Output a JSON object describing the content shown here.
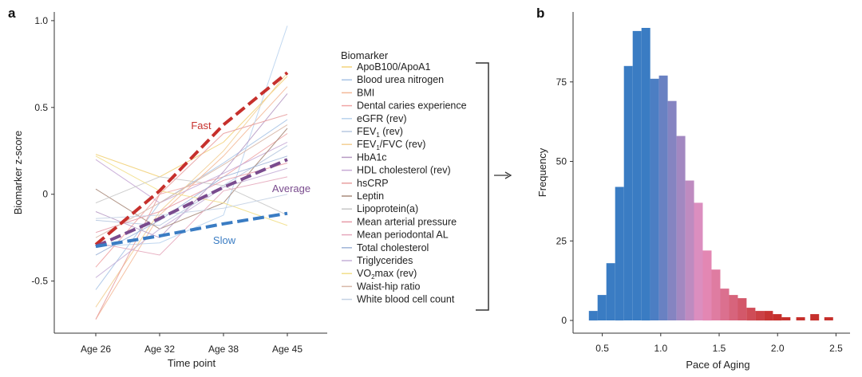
{
  "panels": {
    "a": "a",
    "b": "b"
  },
  "chart_data": [
    {
      "type": "line",
      "panel": "a",
      "x": [
        "Age 26",
        "Age 32",
        "Age 38",
        "Age 45"
      ],
      "xlabel": "Time point",
      "ylabel": "Biomarker z-score",
      "ylim": [
        -0.8,
        1.05
      ],
      "yticks": [
        -0.5,
        0,
        0.5,
        1.0
      ],
      "ytick_labels": [
        "-0.5",
        "0",
        "0.5",
        "1.0"
      ],
      "grid": false,
      "legend_title": "Biomarker",
      "legend_placement": "right",
      "series": [
        {
          "name": "ApoB100/ApoA1",
          "values": [
            0.23,
            0.1,
            0.3,
            0.68
          ],
          "color": "#f2d27a"
        },
        {
          "name": "Blood urea nitrogen",
          "values": [
            -0.55,
            -0.05,
            0.18,
            0.43
          ],
          "color": "#a9c4e6"
        },
        {
          "name": "BMI",
          "values": [
            -0.72,
            -0.12,
            0.22,
            0.62
          ],
          "color": "#f4b998"
        },
        {
          "name": "Dental caries experience",
          "values": [
            -0.42,
            0.0,
            0.1,
            0.35
          ],
          "color": "#f0a5a5"
        },
        {
          "name": "eGFR (rev)",
          "values": [
            -0.3,
            -0.28,
            -0.12,
            0.97
          ],
          "color": "#b9d3ee"
        },
        {
          "name": "FEV1 (rev)",
          "values": [
            -0.15,
            -0.18,
            0.05,
            0.28
          ],
          "color": "#b7c8e0"
        },
        {
          "name": "FEV1/FVC (rev)",
          "values": [
            -0.65,
            -0.1,
            0.25,
            0.7
          ],
          "color": "#f3cf95"
        },
        {
          "name": "HbA1c",
          "values": [
            -0.1,
            -0.25,
            0.13,
            0.58
          ],
          "color": "#b79ac4"
        },
        {
          "name": "HDL cholesterol (rev)",
          "values": [
            0.2,
            -0.05,
            0.12,
            0.3
          ],
          "color": "#c7aad6"
        },
        {
          "name": "hsCRP",
          "values": [
            -0.72,
            0.0,
            0.35,
            0.46
          ],
          "color": "#e8a0a0"
        },
        {
          "name": "Leptin",
          "values": [
            0.03,
            -0.2,
            -0.05,
            0.38
          ],
          "color": "#a88a7a"
        },
        {
          "name": "Lipoprotein(a)",
          "values": [
            -0.05,
            0.1,
            0.05,
            -0.12
          ],
          "color": "#c8c8c8"
        },
        {
          "name": "Mean arterial pressure",
          "values": [
            -0.22,
            -0.1,
            0.08,
            0.18
          ],
          "color": "#e79aa7"
        },
        {
          "name": "Mean periodontal AL",
          "values": [
            -0.28,
            -0.35,
            0.02,
            0.1
          ],
          "color": "#e6a8bd"
        },
        {
          "name": "Total cholesterol",
          "values": [
            -0.35,
            -0.15,
            0.1,
            0.22
          ],
          "color": "#9fb5d8"
        },
        {
          "name": "Triglycerides",
          "values": [
            -0.48,
            -0.2,
            0.04,
            0.15
          ],
          "color": "#c6b0d8"
        },
        {
          "name": "VO2max (rev)",
          "values": [
            0.22,
            0.02,
            -0.05,
            -0.18
          ],
          "color": "#f2df8a"
        },
        {
          "name": "Waist-hip ratio",
          "values": [
            -0.25,
            -0.05,
            0.17,
            0.4
          ],
          "color": "#d8b8a8"
        },
        {
          "name": "White blood cell count",
          "values": [
            -0.14,
            -0.12,
            -0.08,
            0.0
          ],
          "color": "#c4d2e4"
        }
      ],
      "groups": [
        {
          "name": "Fast",
          "values": [
            -0.29,
            0.02,
            0.4,
            0.7
          ],
          "color": "#c6302c"
        },
        {
          "name": "Average",
          "values": [
            -0.3,
            -0.14,
            0.04,
            0.2
          ],
          "color": "#7a4c8e"
        },
        {
          "name": "Slow",
          "values": [
            -0.3,
            -0.24,
            -0.17,
            -0.11
          ],
          "color": "#3a7cc3"
        }
      ],
      "legend_items": [
        {
          "label": "ApoB100/ApoA1",
          "sub": ""
        },
        {
          "label": "Blood urea nitrogen",
          "sub": ""
        },
        {
          "label": "BMI",
          "sub": ""
        },
        {
          "label": "Dental caries experience",
          "sub": ""
        },
        {
          "label": "eGFR (rev)",
          "sub": ""
        },
        {
          "label": "FEV",
          "sub": "1",
          "rest": " (rev)"
        },
        {
          "label": "FEV",
          "sub": "1",
          "rest": "/FVC (rev)"
        },
        {
          "label": "HbA1c",
          "sub": ""
        },
        {
          "label": "HDL cholesterol (rev)",
          "sub": ""
        },
        {
          "label": "hsCRP",
          "sub": ""
        },
        {
          "label": "Leptin",
          "sub": ""
        },
        {
          "label": "Lipoprotein(a)",
          "sub": ""
        },
        {
          "label": "Mean arterial pressure",
          "sub": ""
        },
        {
          "label": "Mean periodontal AL",
          "sub": ""
        },
        {
          "label": "Total cholesterol",
          "sub": ""
        },
        {
          "label": "Triglycerides",
          "sub": ""
        },
        {
          "label": "VO",
          "sub": "2",
          "rest": "max (rev)"
        },
        {
          "label": "Waist-hip ratio",
          "sub": ""
        },
        {
          "label": "White blood cell count",
          "sub": ""
        }
      ]
    },
    {
      "type": "bar",
      "panel": "b",
      "xlabel": "Pace of Aging",
      "ylabel": "Frequency",
      "xlim": [
        0.25,
        2.62
      ],
      "ylim": [
        -4,
        97
      ],
      "xticks": [
        0.5,
        1.0,
        1.5,
        2.0,
        2.5
      ],
      "xtick_labels": [
        "0.5",
        "1.0",
        "1.5",
        "2.0",
        "2.5"
      ],
      "yticks": [
        0,
        25,
        50,
        75
      ],
      "ytick_labels": [
        "0",
        "25",
        "50",
        "75"
      ],
      "grid": false,
      "bin_width": 0.075,
      "bins": [
        {
          "start": 0.385,
          "value": 3
        },
        {
          "start": 0.46,
          "value": 8
        },
        {
          "start": 0.535,
          "value": 18
        },
        {
          "start": 0.61,
          "value": 42
        },
        {
          "start": 0.685,
          "value": 80
        },
        {
          "start": 0.76,
          "value": 91
        },
        {
          "start": 0.835,
          "value": 92
        },
        {
          "start": 0.91,
          "value": 76
        },
        {
          "start": 0.985,
          "value": 77
        },
        {
          "start": 1.06,
          "value": 69
        },
        {
          "start": 1.135,
          "value": 58
        },
        {
          "start": 1.21,
          "value": 44
        },
        {
          "start": 1.285,
          "value": 37
        },
        {
          "start": 1.36,
          "value": 22
        },
        {
          "start": 1.435,
          "value": 16
        },
        {
          "start": 1.51,
          "value": 10
        },
        {
          "start": 1.585,
          "value": 8
        },
        {
          "start": 1.66,
          "value": 7
        },
        {
          "start": 1.735,
          "value": 4
        },
        {
          "start": 1.81,
          "value": 3
        },
        {
          "start": 1.885,
          "value": 3
        },
        {
          "start": 1.96,
          "value": 2
        },
        {
          "start": 2.035,
          "value": 1
        },
        {
          "start": 2.16,
          "value": 1
        },
        {
          "start": 2.28,
          "value": 2
        },
        {
          "start": 2.4,
          "value": 1
        }
      ],
      "color_low": "#3a7cc3",
      "color_mid": "#e58fbf",
      "color_high": "#c6302c"
    }
  ]
}
